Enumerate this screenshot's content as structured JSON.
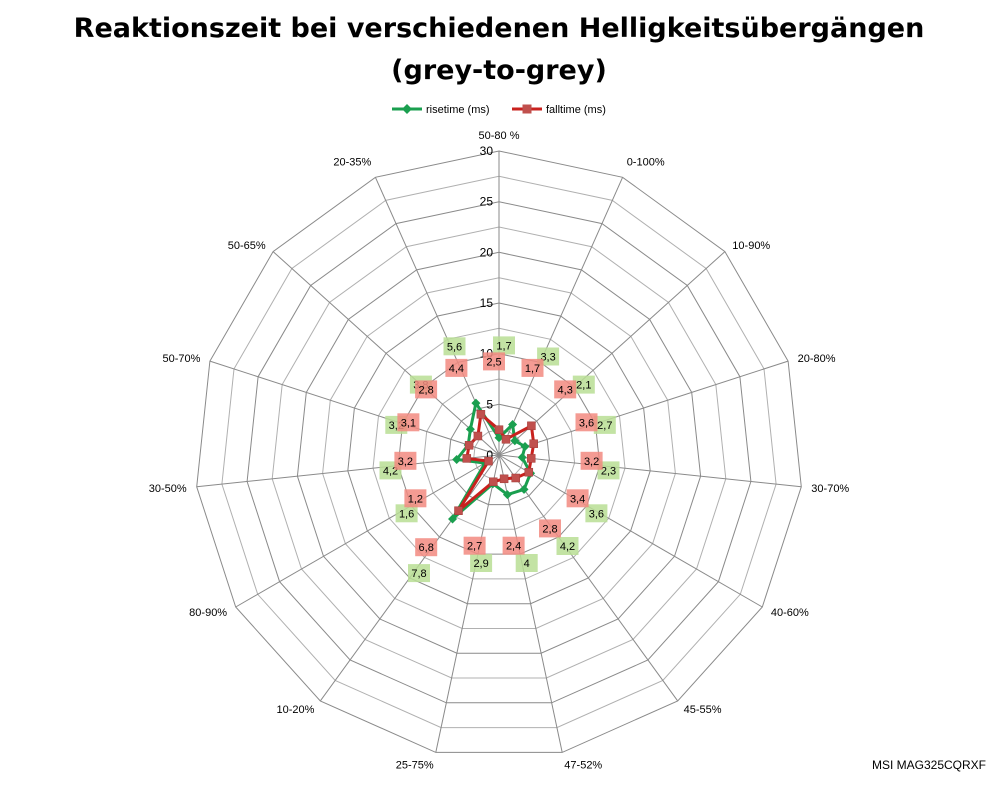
{
  "chart_data": {
    "type": "radar",
    "title": "Reaktionszeit bei verschiedenen Helligkeitsübergängen",
    "subtitle": "(grey-to-grey)",
    "categories": [
      "50-80 %",
      "0-100%",
      "10-90%",
      "20-80%",
      "30-70%",
      "40-60%",
      "45-55%",
      "47-52%",
      "25-75%",
      "10-20%",
      "80-90%",
      "30-50%",
      "50-70%",
      "50-65%",
      "20-35%"
    ],
    "radial_axis": {
      "min": 0,
      "max": 30,
      "ticks": [
        0,
        5,
        10,
        15,
        20,
        25,
        30
      ]
    },
    "legend_position": "top",
    "series": [
      {
        "name": "risetime (ms)",
        "color": "#1a9f4f",
        "label_bg": "#b9de94",
        "marker": "diamond",
        "values": [
          1.7,
          3.3,
          2.1,
          2.7,
          2.3,
          3.6,
          4.2,
          4,
          2.9,
          7.8,
          1.6,
          4.2,
          3.2,
          3.8,
          5.6
        ],
        "labels": [
          "1,7",
          "3,3",
          "2,1",
          "2,7",
          "2,3",
          "3,6",
          "4,2",
          "4",
          "2,9",
          "7,8",
          "1,6",
          "4,2",
          "3,2",
          "3,8",
          "5,6"
        ]
      },
      {
        "name": "falltime (ms)",
        "color": "#c9211e",
        "label_bg": "#f28a80",
        "marker": "square",
        "values": [
          2.5,
          1.7,
          4.3,
          3.6,
          3.2,
          3.4,
          2.8,
          2.4,
          2.7,
          6.8,
          1.2,
          3.2,
          3.1,
          2.8,
          4.4
        ],
        "labels": [
          "2,5",
          "1,7",
          "4,3",
          "3,6",
          "3,2",
          "3,4",
          "2,8",
          "2,4",
          "2,7",
          "6,8",
          "1,2",
          "3,2",
          "3,1",
          "2,8",
          "4,4"
        ]
      }
    ]
  },
  "watermark": "MSI MAG325CQRXF"
}
